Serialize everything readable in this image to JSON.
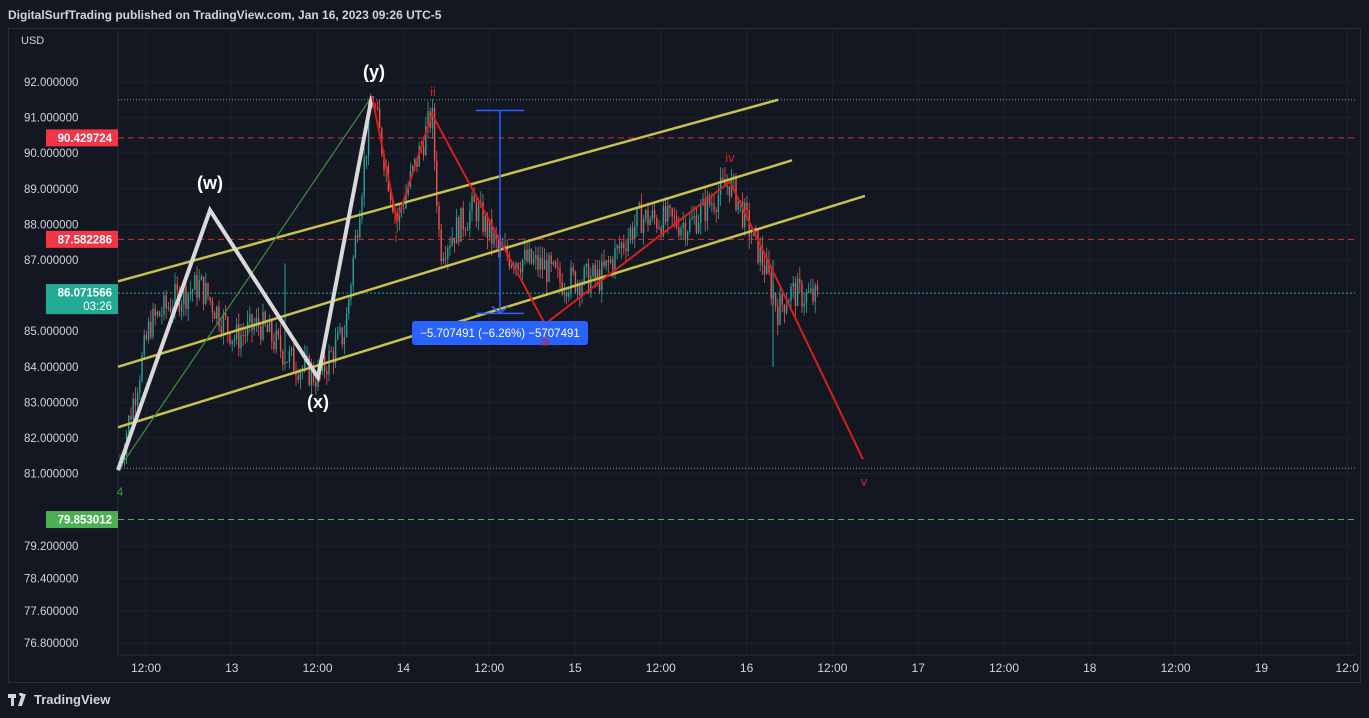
{
  "header": {
    "published": "DigitalSurfTrading published on TradingView.com, Jan 16, 2023 09:26 UTC-5"
  },
  "footer": {
    "brand": "TradingView"
  },
  "colors": {
    "background": "#131722",
    "grid": "#1e222d",
    "channel": "#c9c14a",
    "wave_red": "#d91e1e",
    "wave_white": "#d9d9d9",
    "wave_green": "#3f8f3f",
    "measure": "#2962ff",
    "up_candle": "#26a69a",
    "down_candle": "#ef5350"
  },
  "chart_data": {
    "type": "line",
    "currency": "USD",
    "y_ticks": [
      "92.000000",
      "91.000000",
      "90.000000",
      "89.000000",
      "88.000000",
      "87.000000",
      "85.000000",
      "84.000000",
      "83.000000",
      "82.000000",
      "81.000000",
      "79.200000",
      "78.400000",
      "77.600000",
      "76.800000"
    ],
    "x_ticks": [
      "12:00",
      "13",
      "12:00",
      "14",
      "12:00",
      "15",
      "12:00",
      "16",
      "12:00",
      "17",
      "12:00",
      "18",
      "12:00",
      "19",
      "12:0"
    ],
    "price_labels": [
      {
        "value": "90.429724",
        "color": "#f23645"
      },
      {
        "value": "87.582286",
        "color": "#f23645"
      },
      {
        "value": "86.071566",
        "sub": "03:26",
        "color": "#22ab94"
      },
      {
        "value": "79.853012",
        "color": "#4caf50"
      }
    ],
    "measure_label": "−5.707491 (−6.26%) −5707491",
    "wave_labels": {
      "w": "(w)",
      "x": "(x)",
      "y": "(y)",
      "i": "i",
      "ii": "ii",
      "iii": "iii",
      "iv": "iv",
      "v": "v",
      "four": "4"
    },
    "price_series": {
      "name": "price",
      "x": [
        "12:00",
        "13",
        "12:00",
        "14",
        "12:00",
        "15",
        "12:00",
        "16"
      ],
      "values": [
        81.1,
        85.4,
        84.0,
        91.6,
        88.5,
        85.4,
        88.3,
        86.07
      ]
    }
  }
}
